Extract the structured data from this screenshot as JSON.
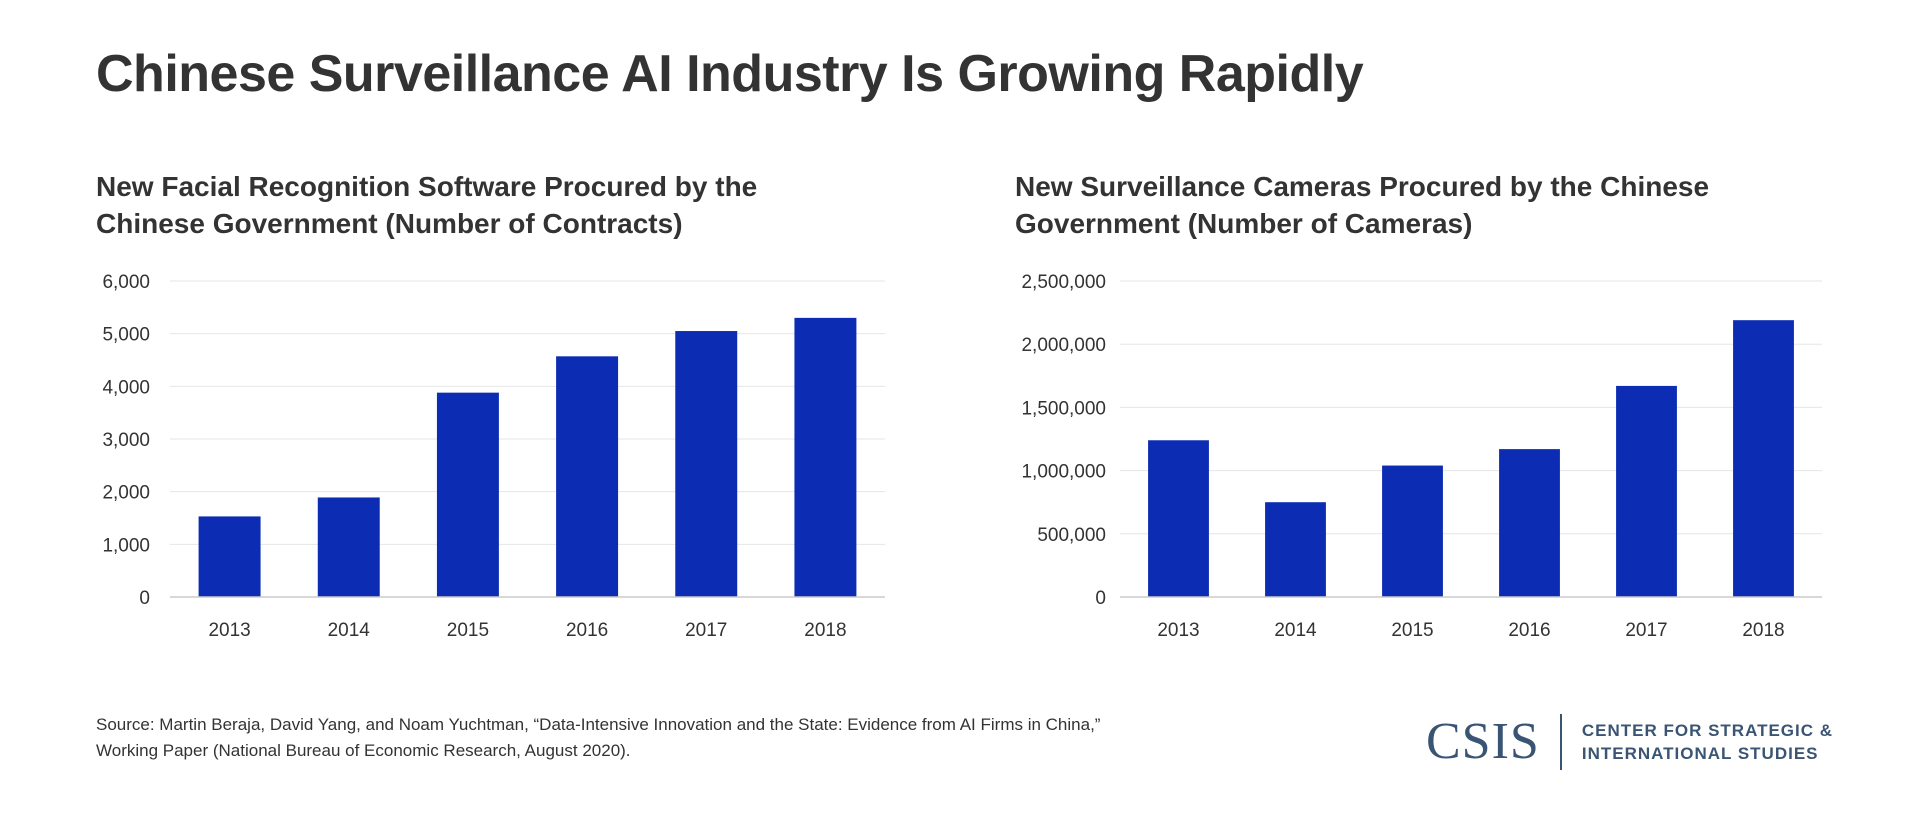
{
  "title": "Chinese Surveillance AI Industry Is Growing Rapidly",
  "colors": {
    "bar": "#0c2db3",
    "grid": "#e6e6e6",
    "axis": "#cccccc",
    "text": "#333333",
    "logo": "#3a5573"
  },
  "chart_data": [
    {
      "type": "bar",
      "title": "New Facial Recognition Software Procured by the Chinese Government (Number of Contracts)",
      "categories": [
        "2013",
        "2014",
        "2015",
        "2016",
        "2017",
        "2018"
      ],
      "values": [
        1530,
        1890,
        3880,
        4570,
        5050,
        5300
      ],
      "ylim": [
        0,
        6000
      ],
      "yticks": [
        0,
        1000,
        2000,
        3000,
        4000,
        5000,
        6000
      ],
      "ytick_labels": [
        "0",
        "1,000",
        "2,000",
        "3,000",
        "4,000",
        "5,000",
        "6,000"
      ],
      "xlabel": "",
      "ylabel": "",
      "grid": true,
      "legend": "none"
    },
    {
      "type": "bar",
      "title": "New Surveillance Cameras Procured by the Chinese Government (Number of Cameras)",
      "categories": [
        "2013",
        "2014",
        "2015",
        "2016",
        "2017",
        "2018"
      ],
      "values": [
        1240000,
        750000,
        1040000,
        1170000,
        1670000,
        2190000
      ],
      "ylim": [
        0,
        2500000
      ],
      "yticks": [
        0,
        500000,
        1000000,
        1500000,
        2000000,
        2500000
      ],
      "ytick_labels": [
        "0",
        "500,000",
        "1,000,000",
        "1,500,000",
        "2,000,000",
        "2,500,000"
      ],
      "xlabel": "",
      "ylabel": "",
      "grid": true,
      "legend": "none"
    }
  ],
  "source": {
    "line1": "Source: Martin Beraja, David Yang, and Noam Yuchtman, “Data-Intensive Innovation and the State: Evidence from AI Firms in China,”",
    "line2": "Working Paper (National Bureau of Economic Research, August 2020)."
  },
  "logo": {
    "mark": "CSIS",
    "line1": "CENTER FOR STRATEGIC &",
    "line2": "INTERNATIONAL STUDIES"
  }
}
